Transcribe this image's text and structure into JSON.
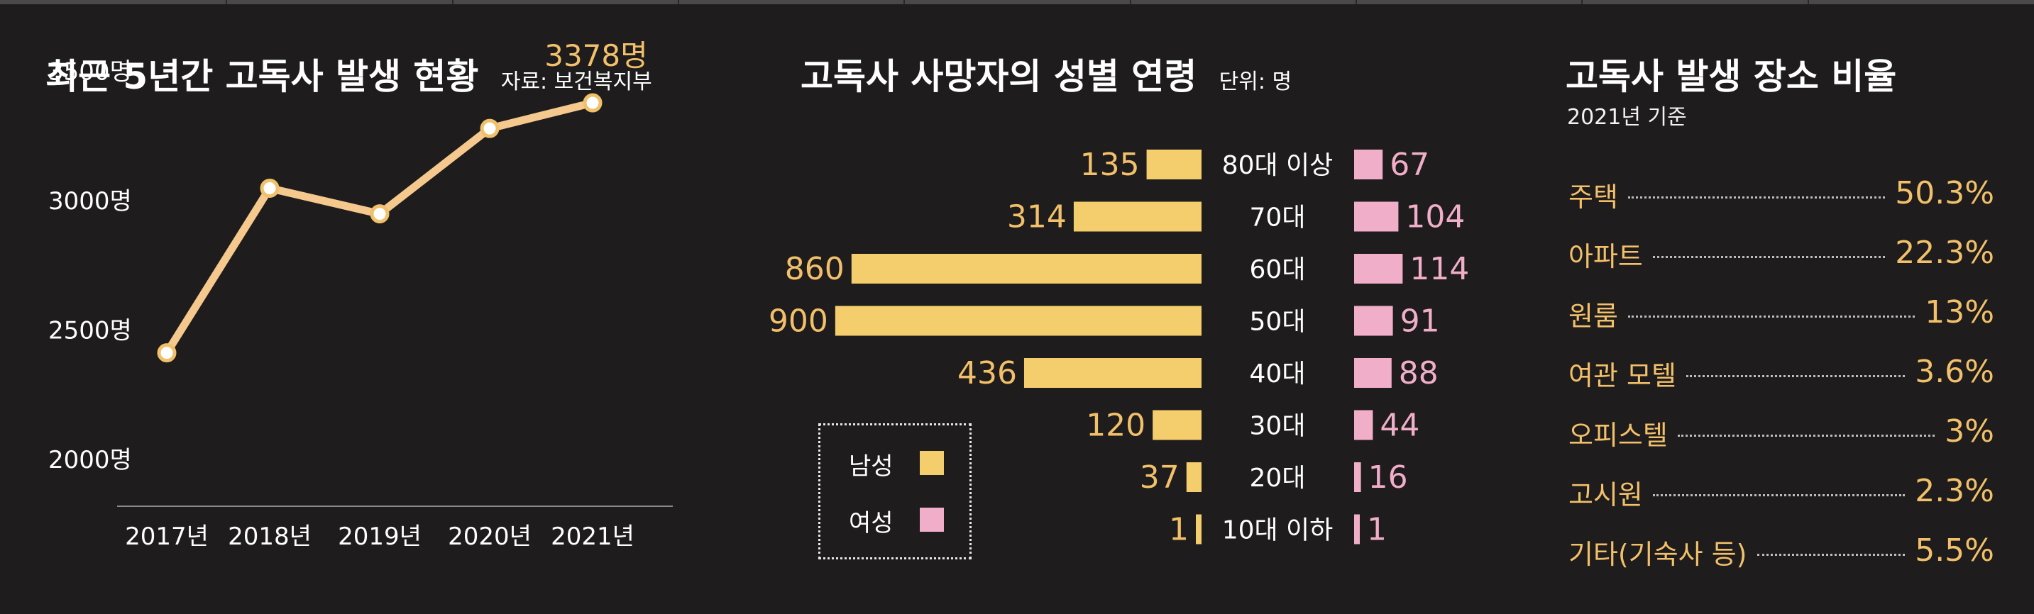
{
  "colors": {
    "background": "#1e1c1c",
    "line": "#f5c98e",
    "male": "#f4cd6c",
    "female": "#f0aec8",
    "accent_text": "#f2c06a"
  },
  "panel1": {
    "title": "최근 5년간 고독사 발생 현황",
    "source": "자료: 보건복지부",
    "annotation": "3378명"
  },
  "panel2": {
    "title": "고독사 사망자의 성별  연령",
    "unit": "단위: 명",
    "legend_male": "남성",
    "legend_female": "여성"
  },
  "panel3": {
    "title": "고독사 발생 장소 비율",
    "subtitle": "2021년 기준"
  },
  "chart_data": [
    {
      "type": "line",
      "title": "최근 5년간 고독사 발생 현황",
      "categories": [
        "2017년",
        "2018년",
        "2019년",
        "2020년",
        "2021년"
      ],
      "series": [
        {
          "values": [
            2412,
            3048,
            2949,
            3279,
            3378
          ]
        }
      ],
      "y_ticks": [
        2000,
        2500,
        3000,
        3500
      ],
      "y_tick_labels": [
        "2000명",
        "2500명",
        "3000명",
        "3500명"
      ],
      "ylim": [
        2000,
        3500
      ],
      "grid": false,
      "annotation": "3378명"
    },
    {
      "type": "bar",
      "title": "고독사 사망자의 성별  연령",
      "unit": "단위: 명",
      "categories": [
        "80대 이상",
        "70대",
        "60대",
        "50대",
        "40대",
        "30대",
        "20대",
        "10대 이하"
      ],
      "series": [
        {
          "name": "남성",
          "values": [
            135,
            314,
            860,
            900,
            436,
            120,
            37,
            1
          ]
        },
        {
          "name": "여성",
          "values": [
            67,
            104,
            114,
            91,
            88,
            44,
            16,
            1
          ]
        }
      ],
      "legend": "bottom-left"
    },
    {
      "type": "table",
      "title": "고독사 발생 장소 비율",
      "subtitle": "2021년 기준",
      "rows": [
        {
          "label": "주택",
          "value": "50.3%"
        },
        {
          "label": "아파트",
          "value": "22.3%"
        },
        {
          "label": "원룸",
          "value": "13%"
        },
        {
          "label": "여관 모텔",
          "value": "3.6%"
        },
        {
          "label": "오피스텔",
          "value": "3%"
        },
        {
          "label": "고시원",
          "value": "2.3%"
        },
        {
          "label": "기타(기숙사 등)",
          "value": "5.5%"
        }
      ]
    }
  ]
}
